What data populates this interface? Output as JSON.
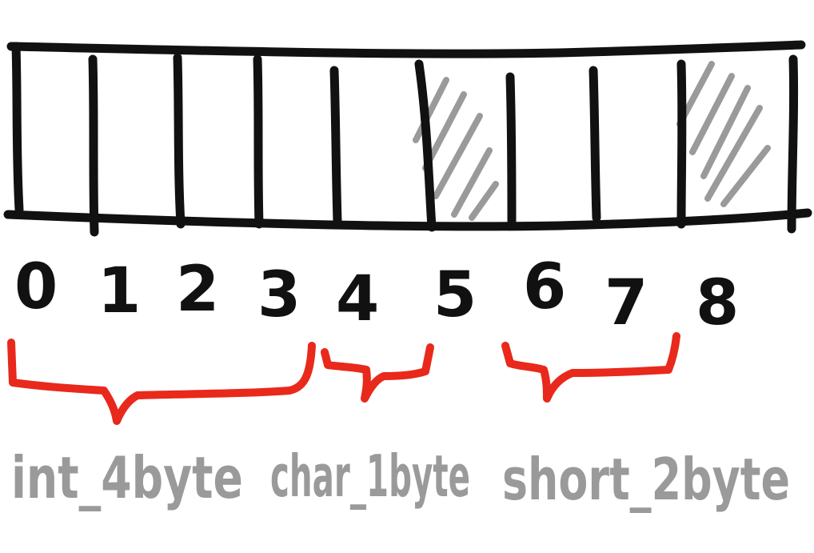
{
  "colors": {
    "ink": "#111111",
    "padding_hatch": "#9a9a9a",
    "brace": "#e8291c",
    "label": "#9a9a9a"
  },
  "memory": {
    "byte_indices": [
      "0",
      "1",
      "2",
      "3",
      "4",
      "5",
      "6",
      "7",
      "8"
    ],
    "padding_cells": [
      5,
      8
    ]
  },
  "fields": [
    {
      "label": "int_4byte",
      "start": 0,
      "end": 3
    },
    {
      "label": "char_1byte",
      "start": 4,
      "end": 4
    },
    {
      "label": "short_2byte",
      "start": 6,
      "end": 7
    }
  ]
}
